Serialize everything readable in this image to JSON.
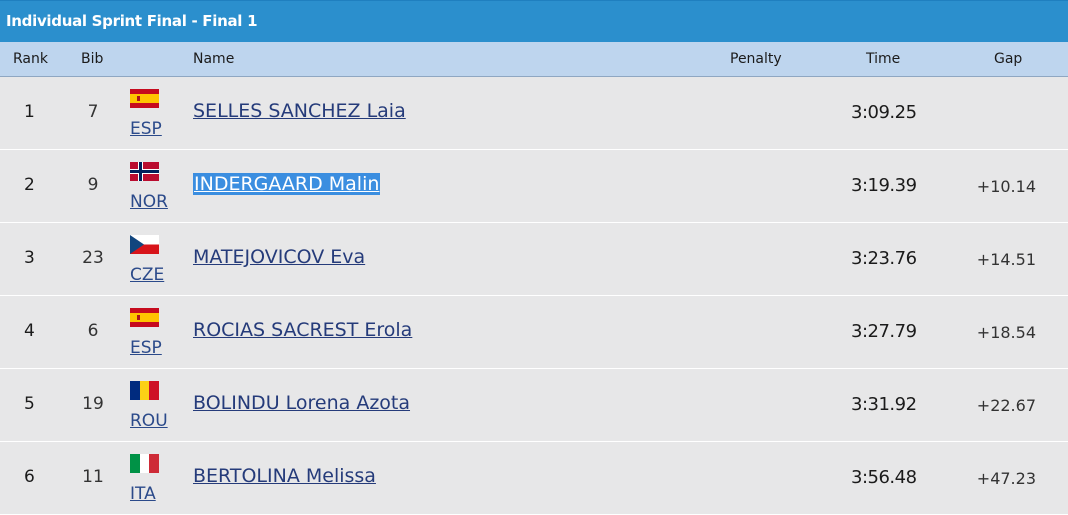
{
  "title": "Individual Sprint Final - Final 1",
  "columns": {
    "rank": "Rank",
    "bib": "Bib",
    "name": "Name",
    "penalty": "Penalty",
    "time": "Time",
    "gap": "Gap"
  },
  "colors": {
    "title_bar": "#2b8fcd",
    "header_row": "#bed5ee",
    "row_bg": "#e7e7e8",
    "link": "#253b7a",
    "selection": "#3b8ee0"
  },
  "rows": [
    {
      "rank": "1",
      "bib": "7",
      "nation": "ESP",
      "flag": "spain-flag-icon",
      "name": "SELLES SANCHEZ Laia",
      "penalty": "",
      "time": "3:09.25",
      "gap": "",
      "selected": false
    },
    {
      "rank": "2",
      "bib": "9",
      "nation": "NOR",
      "flag": "norway-flag-icon",
      "name": "INDERGAARD Malin",
      "penalty": "",
      "time": "3:19.39",
      "gap": "+10.14",
      "selected": true
    },
    {
      "rank": "3",
      "bib": "23",
      "nation": "CZE",
      "flag": "czech-flag-icon",
      "name": "MATEJOVICOV Eva",
      "penalty": "",
      "time": "3:23.76",
      "gap": "+14.51",
      "selected": false
    },
    {
      "rank": "4",
      "bib": "6",
      "nation": "ESP",
      "flag": "spain-flag-icon",
      "name": "ROCIAS SACREST Erola",
      "penalty": "",
      "time": "3:27.79",
      "gap": "+18.54",
      "selected": false
    },
    {
      "rank": "5",
      "bib": "19",
      "nation": "ROU",
      "flag": "romania-flag-icon",
      "name": "BOLINDU Lorena Azota",
      "penalty": "",
      "time": "3:31.92",
      "gap": "+22.67",
      "selected": false
    },
    {
      "rank": "6",
      "bib": "11",
      "nation": "ITA",
      "flag": "italy-flag-icon",
      "name": "BERTOLINA Melissa",
      "penalty": "",
      "time": "3:56.48",
      "gap": "+47.23",
      "selected": false
    }
  ]
}
